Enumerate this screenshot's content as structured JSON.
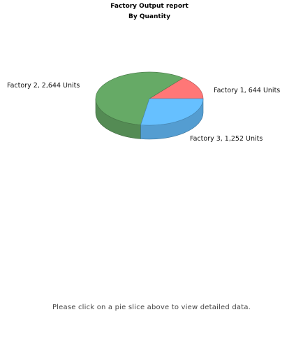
{
  "chart_data": {
    "type": "pie",
    "title": "Factory Output report",
    "subtitle": "By Quantity",
    "categories": [
      "Factory 1",
      "Factory 2",
      "Factory 3"
    ],
    "values": [
      644,
      2644,
      1252
    ],
    "unit": "Units",
    "data_labels": [
      "Factory 1, 644 Units",
      "Factory 2, 2,644 Units",
      "Factory 3, 1,252 Units"
    ],
    "colors": [
      "#FF7777",
      "#66AA66",
      "#66C0FF"
    ],
    "style": "3d"
  },
  "footer": {
    "hint": "Please click on a pie slice above to view detailed data."
  }
}
